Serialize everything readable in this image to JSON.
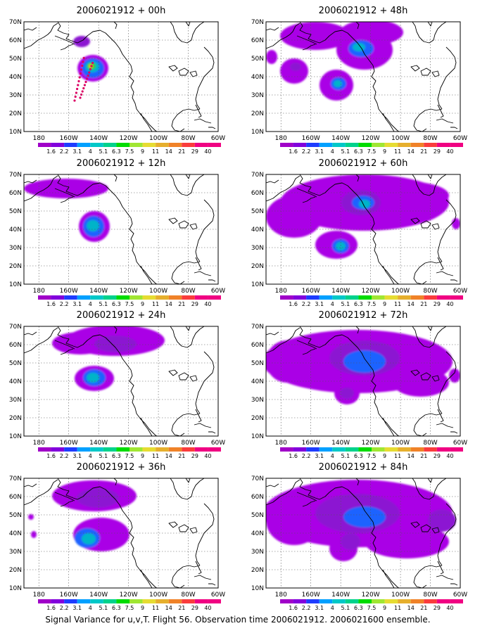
{
  "figure": {
    "caption": "Signal Variance for u,v,T. Flight 56. Observation time 2006021912. 2006021600 ensemble."
  },
  "panels": [
    {
      "title": "2006021912 + 00h"
    },
    {
      "title": "2006021912 + 48h"
    },
    {
      "title": "2006021912 + 12h"
    },
    {
      "title": "2006021912 + 60h"
    },
    {
      "title": "2006021912 + 24h"
    },
    {
      "title": "2006021912 + 72h"
    },
    {
      "title": "2006021912 + 36h"
    },
    {
      "title": "2006021912 + 84h"
    }
  ],
  "axes": {
    "lon_ticks": [
      "180",
      "160W",
      "140W",
      "120W",
      "100W",
      "80W",
      "60W"
    ],
    "lon_values": [
      -180,
      -160,
      -140,
      -120,
      -100,
      -80,
      -60
    ],
    "lat_ticks": [
      "10N",
      "20N",
      "30N",
      "40N",
      "50N",
      "60N",
      "70N"
    ],
    "lat_values": [
      10,
      20,
      30,
      40,
      50,
      60,
      70
    ],
    "lon_range": [
      -190,
      -60
    ],
    "lat_range": [
      10,
      70
    ],
    "grid": "dotted"
  },
  "colorbar": {
    "labels": [
      "1.6",
      "2.2",
      "3.1",
      "4",
      "5.1",
      "6.3",
      "7.5",
      "9",
      "11",
      "14",
      "21",
      "29",
      "40"
    ],
    "colors": [
      "#a000c8",
      "#8200dc",
      "#1e3cff",
      "#00a0ff",
      "#00c8c8",
      "#00d28c",
      "#00dc00",
      "#a0e632",
      "#e6dc32",
      "#e6af2d",
      "#f08228",
      "#fa3c3c",
      "#f00082"
    ]
  },
  "colors": {
    "outer": "#aa00e6",
    "mid": "#8c14d2",
    "core": "#1e64ff",
    "inner": "#00b4c8",
    "green": "#32c832",
    "yellow": "#d2d200",
    "obs_dots": "#dc0064"
  }
}
